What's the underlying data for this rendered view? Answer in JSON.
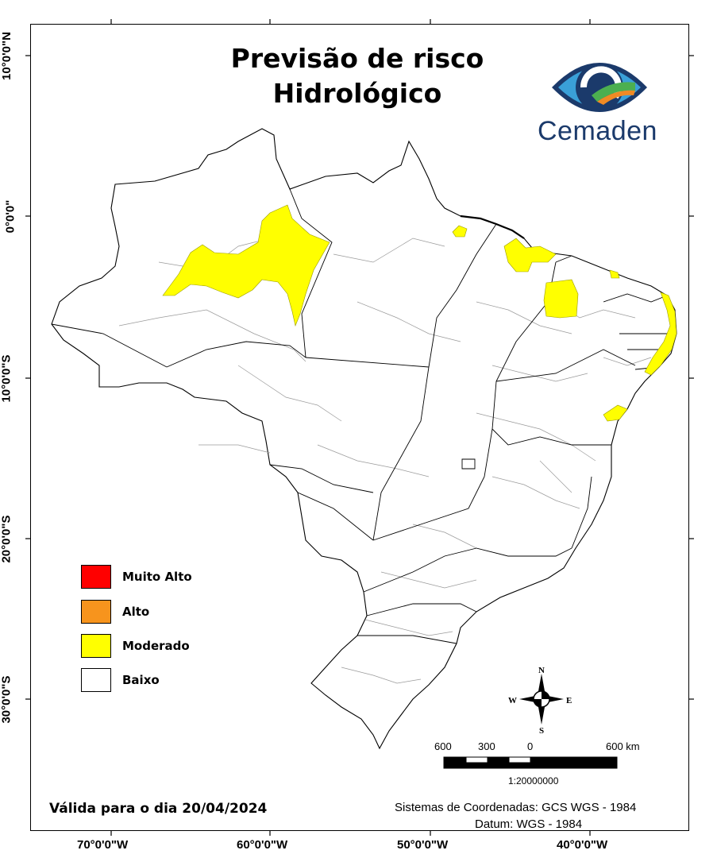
{
  "title": {
    "line1": "Previsão de risco",
    "line2": "Hidrológico"
  },
  "logo": {
    "text": "Cemaden",
    "icon": "cemaden-eye-logo",
    "colors": {
      "dark_blue": "#1b3a6b",
      "light_blue": "#3aa0d8",
      "green": "#4caf50",
      "orange": "#f08a24"
    }
  },
  "axis_labels": {
    "latitude": [
      "10°0'0\"N",
      "0°0'0\"",
      "10°0'0\"S",
      "20°0'0\"S",
      "30°0'0\"S"
    ],
    "longitude": [
      "70°0'0\"W",
      "60°0'0\"W",
      "50°0'0\"W",
      "40°0'0\"W"
    ]
  },
  "legend": {
    "items": [
      {
        "label": "Muito Alto",
        "color": "#ff0000"
      },
      {
        "label": "Alto",
        "color": "#f7941d"
      },
      {
        "label": "Moderado",
        "color": "#ffff00"
      },
      {
        "label": "Baixo",
        "color": "#ffffff"
      }
    ]
  },
  "map": {
    "region": "Brasil",
    "risk_areas": [
      {
        "level": "Moderado",
        "area": "Amazonas / Roraima"
      },
      {
        "level": "Moderado",
        "area": "Amapá"
      },
      {
        "level": "Moderado",
        "area": "Maranhão norte"
      },
      {
        "level": "Moderado",
        "area": "Piauí"
      },
      {
        "level": "Moderado",
        "area": "Ceará"
      },
      {
        "level": "Moderado",
        "area": "Costa leste do Nordeste"
      },
      {
        "level": "Moderado",
        "area": "Sergipe / Bahia norte"
      }
    ]
  },
  "compass": {
    "n": "N",
    "s": "S",
    "e": "E",
    "w": "W"
  },
  "scale": {
    "labels": [
      "600",
      "300",
      "0",
      "600 km"
    ],
    "ratio": "1:20000000"
  },
  "validity": "Válida para o dia 20/04/2024",
  "coordinate_system": {
    "line1": "Sistemas de Coordenadas: GCS WGS - 1984",
    "line2": "Datum: WGS - 1984"
  }
}
